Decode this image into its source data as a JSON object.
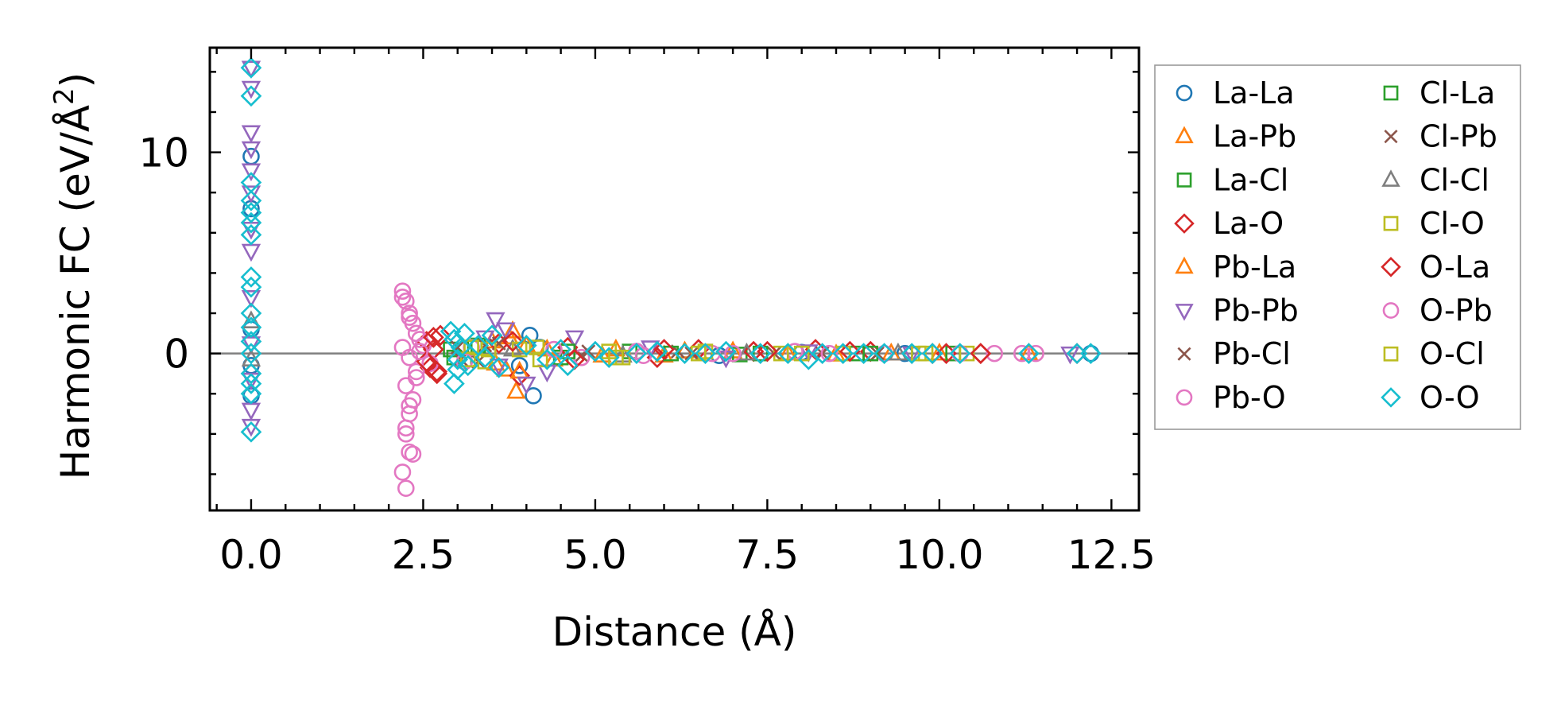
{
  "chart_data": {
    "type": "scatter",
    "title": "",
    "xlabel": "Distance (Å)",
    "ylabel_prefix": "Harmonic FC (eV/Å",
    "ylabel_sup": "2",
    "ylabel_suffix": ")",
    "xlim": [
      -0.6,
      12.9
    ],
    "ylim": [
      -7.8,
      15.2
    ],
    "x_ticks": [
      0.0,
      2.5,
      5.0,
      7.5,
      10.0,
      12.5
    ],
    "x_tick_labels": [
      "0.0",
      "2.5",
      "5.0",
      "7.5",
      "10.0",
      "12.5"
    ],
    "y_ticks": [
      0,
      10
    ],
    "y_tick_labels": [
      "0",
      "10"
    ],
    "reference_line_y": 0,
    "legend_position": "outside-right",
    "series": [
      {
        "name": "La-La",
        "marker": "circle",
        "color": "#1f77b4",
        "points": [
          [
            0.0,
            9.8
          ],
          [
            0.0,
            7.2
          ],
          [
            0.0,
            1.2
          ],
          [
            0.0,
            -0.6
          ],
          [
            0.0,
            -2.1
          ],
          [
            3.9,
            -0.6
          ],
          [
            4.05,
            0.9
          ],
          [
            4.1,
            -2.1
          ],
          [
            4.2,
            0.3
          ],
          [
            5.6,
            0.1
          ],
          [
            6.8,
            -0.1
          ],
          [
            8.0,
            0.05
          ],
          [
            9.5,
            0.0
          ],
          [
            12.2,
            0.0
          ]
        ]
      },
      {
        "name": "La-Pb",
        "marker": "triangle-up",
        "color": "#ff7f0e",
        "points": [
          [
            3.5,
            0.6
          ],
          [
            3.7,
            -0.8
          ],
          [
            3.8,
            1.1
          ],
          [
            3.85,
            -1.9
          ],
          [
            4.0,
            0.4
          ],
          [
            4.4,
            -0.3
          ],
          [
            5.3,
            0.2
          ],
          [
            6.0,
            -0.1
          ],
          [
            7.0,
            0.1
          ],
          [
            8.5,
            -0.05
          ],
          [
            10.0,
            0.0
          ],
          [
            11.3,
            0.0
          ]
        ]
      },
      {
        "name": "La-Cl",
        "marker": "square",
        "color": "#2ca02c",
        "points": [
          [
            2.9,
            0.2
          ],
          [
            3.1,
            -0.3
          ],
          [
            3.3,
            0.4
          ],
          [
            4.5,
            -0.2
          ],
          [
            5.5,
            0.1
          ],
          [
            7.1,
            -0.05
          ],
          [
            8.8,
            0.0
          ],
          [
            10.2,
            0.0
          ]
        ]
      },
      {
        "name": "La-O",
        "marker": "diamond",
        "color": "#d62728",
        "points": [
          [
            2.55,
            0.6
          ],
          [
            2.6,
            -0.7
          ],
          [
            2.65,
            0.2
          ],
          [
            2.7,
            -1.0
          ],
          [
            2.75,
            0.9
          ],
          [
            3.6,
            0.5
          ],
          [
            3.9,
            -1.1
          ],
          [
            4.6,
            0.3
          ],
          [
            5.9,
            -0.2
          ],
          [
            6.5,
            0.2
          ],
          [
            7.3,
            0.1
          ],
          [
            8.2,
            0.2
          ],
          [
            9.0,
            0.1
          ],
          [
            9.9,
            0.0
          ],
          [
            10.6,
            0.0
          ],
          [
            12.0,
            0.0
          ]
        ]
      },
      {
        "name": "Pb-La",
        "marker": "triangle-up",
        "color": "#ff7f0e",
        "points": [
          [
            3.55,
            -0.5
          ],
          [
            3.75,
            0.8
          ],
          [
            3.9,
            -0.9
          ],
          [
            4.3,
            0.2
          ],
          [
            5.1,
            -0.1
          ],
          [
            6.3,
            0.1
          ],
          [
            7.8,
            0.0
          ],
          [
            9.3,
            0.0
          ]
        ]
      },
      {
        "name": "Pb-Pb",
        "marker": "triangle-down",
        "color": "#9467bd",
        "points": [
          [
            0.0,
            14.2
          ],
          [
            0.0,
            13.2
          ],
          [
            0.0,
            11.0
          ],
          [
            0.0,
            10.2
          ],
          [
            0.0,
            9.1
          ],
          [
            0.0,
            8.0
          ],
          [
            0.0,
            6.2
          ],
          [
            0.0,
            5.1
          ],
          [
            0.0,
            2.8
          ],
          [
            0.0,
            0.5
          ],
          [
            0.0,
            -1.3
          ],
          [
            0.0,
            -2.8
          ],
          [
            0.0,
            -3.6
          ],
          [
            3.4,
            0.8
          ],
          [
            3.55,
            1.7
          ],
          [
            3.6,
            -0.6
          ],
          [
            3.7,
            1.2
          ],
          [
            4.0,
            -1.5
          ],
          [
            4.3,
            -0.9
          ],
          [
            4.7,
            0.8
          ],
          [
            5.8,
            0.3
          ],
          [
            6.9,
            -0.2
          ],
          [
            8.1,
            0.1
          ],
          [
            9.6,
            0.0
          ],
          [
            11.9,
            0.0
          ]
        ]
      },
      {
        "name": "Pb-Cl",
        "marker": "x",
        "color": "#8c564b",
        "points": [
          [
            3.0,
            0.3
          ],
          [
            3.3,
            -0.4
          ],
          [
            3.6,
            0.5
          ],
          [
            4.8,
            -0.1
          ],
          [
            6.2,
            0.1
          ],
          [
            7.6,
            0.0
          ],
          [
            9.1,
            0.0
          ]
        ]
      },
      {
        "name": "Pb-O",
        "marker": "circle",
        "color": "#e377c2",
        "points": [
          [
            2.2,
            3.1
          ],
          [
            2.25,
            2.6
          ],
          [
            2.3,
            2.0
          ],
          [
            2.35,
            1.5
          ],
          [
            2.4,
            1.0
          ],
          [
            2.45,
            0.7
          ],
          [
            2.2,
            0.3
          ],
          [
            2.3,
            -0.2
          ],
          [
            2.4,
            -0.9
          ],
          [
            2.25,
            -1.6
          ],
          [
            2.35,
            -2.3
          ],
          [
            2.3,
            -3.0
          ],
          [
            2.25,
            -3.7
          ],
          [
            2.35,
            -5.0
          ],
          [
            2.2,
            -5.9
          ],
          [
            2.25,
            -6.7
          ],
          [
            2.5,
            0.4
          ],
          [
            2.6,
            -0.5
          ],
          [
            3.2,
            0.3
          ],
          [
            4.8,
            -0.2
          ],
          [
            5.6,
            0.1
          ],
          [
            6.7,
            0.0
          ],
          [
            7.9,
            0.1
          ],
          [
            9.2,
            0.0
          ],
          [
            10.8,
            0.0
          ],
          [
            11.2,
            0.0
          ],
          [
            11.4,
            0.0
          ]
        ]
      },
      {
        "name": "Cl-La",
        "marker": "square",
        "color": "#2ca02c",
        "points": [
          [
            2.95,
            -0.2
          ],
          [
            3.25,
            0.3
          ],
          [
            4.6,
            0.1
          ],
          [
            6.1,
            0.0
          ],
          [
            7.4,
            0.0
          ],
          [
            9.0,
            0.0
          ]
        ]
      },
      {
        "name": "Cl-Pb",
        "marker": "x",
        "color": "#8c564b",
        "points": [
          [
            3.05,
            -0.3
          ],
          [
            3.4,
            0.4
          ],
          [
            4.9,
            0.1
          ],
          [
            6.4,
            0.0
          ],
          [
            8.3,
            0.0
          ]
        ]
      },
      {
        "name": "Cl-Cl",
        "marker": "triangle-up",
        "color": "#7f7f7f",
        "points": [
          [
            0.0,
            1.6
          ],
          [
            0.0,
            -0.3
          ],
          [
            3.8,
            0.2
          ],
          [
            5.4,
            -0.1
          ],
          [
            7.2,
            0.0
          ],
          [
            9.4,
            0.0
          ]
        ]
      },
      {
        "name": "Cl-O",
        "marker": "square",
        "color": "#bcbd22",
        "points": [
          [
            3.2,
            0.3
          ],
          [
            3.4,
            -0.4
          ],
          [
            3.9,
            0.2
          ],
          [
            4.2,
            -0.3
          ],
          [
            5.2,
            0.1
          ],
          [
            5.4,
            -0.2
          ],
          [
            6.6,
            0.1
          ],
          [
            7.7,
            0.0
          ],
          [
            8.6,
            0.0
          ],
          [
            9.8,
            0.0
          ],
          [
            10.4,
            0.0
          ]
        ]
      },
      {
        "name": "O-La",
        "marker": "diamond",
        "color": "#d62728",
        "points": [
          [
            2.55,
            -0.4
          ],
          [
            2.65,
            0.8
          ],
          [
            2.7,
            -0.9
          ],
          [
            3.8,
            0.6
          ],
          [
            4.7,
            -0.3
          ],
          [
            6.0,
            0.2
          ],
          [
            7.5,
            0.1
          ],
          [
            8.7,
            0.1
          ],
          [
            10.1,
            0.0
          ],
          [
            10.6,
            0.0
          ]
        ]
      },
      {
        "name": "O-Pb",
        "marker": "circle",
        "color": "#e377c2",
        "points": [
          [
            2.2,
            2.8
          ],
          [
            2.3,
            1.8
          ],
          [
            2.4,
            -1.2
          ],
          [
            2.3,
            -2.6
          ],
          [
            2.25,
            -4.0
          ],
          [
            2.3,
            -4.9
          ],
          [
            2.45,
            0.1
          ],
          [
            3.1,
            -0.4
          ],
          [
            4.4,
            0.2
          ],
          [
            5.7,
            -0.1
          ],
          [
            7.0,
            0.0
          ],
          [
            8.4,
            0.0
          ],
          [
            10.3,
            0.0
          ]
        ]
      },
      {
        "name": "O-Cl",
        "marker": "square",
        "color": "#bcbd22",
        "points": [
          [
            3.15,
            -0.3
          ],
          [
            3.45,
            0.2
          ],
          [
            4.15,
            0.3
          ],
          [
            5.3,
            -0.2
          ],
          [
            6.5,
            0.0
          ],
          [
            8.0,
            0.0
          ],
          [
            9.7,
            0.0
          ]
        ]
      },
      {
        "name": "O-O",
        "marker": "diamond",
        "color": "#17becf",
        "points": [
          [
            0.0,
            14.2
          ],
          [
            0.0,
            12.8
          ],
          [
            0.0,
            8.5
          ],
          [
            0.0,
            7.6
          ],
          [
            0.0,
            7.0
          ],
          [
            0.0,
            6.5
          ],
          [
            0.0,
            5.9
          ],
          [
            0.0,
            3.8
          ],
          [
            0.0,
            3.3
          ],
          [
            0.0,
            2.0
          ],
          [
            0.0,
            1.3
          ],
          [
            0.0,
            0.6
          ],
          [
            0.0,
            0.0
          ],
          [
            0.0,
            -1.0
          ],
          [
            0.0,
            -1.5
          ],
          [
            0.0,
            -2.0
          ],
          [
            0.0,
            -3.9
          ],
          [
            2.9,
            1.1
          ],
          [
            2.95,
            0.7
          ],
          [
            3.0,
            -0.3
          ],
          [
            3.0,
            -0.8
          ],
          [
            2.95,
            -1.5
          ],
          [
            3.05,
            0.3
          ],
          [
            3.1,
            1.0
          ],
          [
            3.15,
            -0.6
          ],
          [
            3.3,
            0.4
          ],
          [
            3.4,
            -0.2
          ],
          [
            3.5,
            0.9
          ],
          [
            3.6,
            -0.7
          ],
          [
            4.0,
            0.4
          ],
          [
            4.3,
            -0.3
          ],
          [
            4.5,
            0.2
          ],
          [
            4.6,
            -0.6
          ],
          [
            5.0,
            0.1
          ],
          [
            5.2,
            -0.2
          ],
          [
            5.6,
            0.0
          ],
          [
            5.9,
            0.1
          ],
          [
            6.3,
            0.0
          ],
          [
            6.6,
            0.0
          ],
          [
            6.9,
            0.1
          ],
          [
            7.4,
            0.0
          ],
          [
            7.8,
            0.0
          ],
          [
            8.1,
            -0.3
          ],
          [
            8.3,
            0.0
          ],
          [
            8.6,
            0.0
          ],
          [
            8.9,
            0.0
          ],
          [
            9.2,
            0.0
          ],
          [
            9.6,
            0.0
          ],
          [
            9.9,
            0.0
          ],
          [
            10.3,
            0.0
          ],
          [
            11.3,
            0.0
          ],
          [
            12.0,
            0.0
          ],
          [
            12.2,
            0.0
          ]
        ]
      }
    ]
  }
}
